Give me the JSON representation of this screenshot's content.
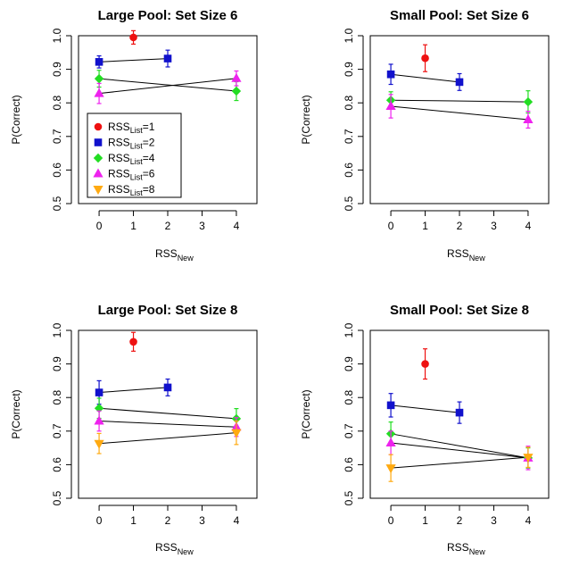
{
  "chart_data": [
    {
      "type": "scatter",
      "title": "Large Pool: Set Size 6",
      "xlabel": "RSS",
      "xlabel_sub": "New",
      "ylabel": "P(Correct)",
      "xlim": [
        -0.6,
        4.6
      ],
      "ylim": [
        0.5,
        1.0
      ],
      "xticks": [
        "0",
        "1",
        "2",
        "3",
        "4"
      ],
      "yticks": [
        "0.5",
        "0.6",
        "0.7",
        "0.8",
        "0.9",
        "1.0"
      ],
      "series": [
        {
          "name": "RSS_List=1",
          "shape": "circle",
          "points": [
            {
              "x": 1,
              "y": 0.995,
              "err": 0.02
            }
          ]
        },
        {
          "name": "RSS_List=2",
          "shape": "square",
          "points": [
            {
              "x": 0,
              "y": 0.922,
              "err": 0.018
            },
            {
              "x": 2,
              "y": 0.932,
              "err": 0.025
            }
          ]
        },
        {
          "name": "RSS_List=4",
          "shape": "diamond",
          "points": [
            {
              "x": 0,
              "y": 0.872,
              "err": 0.025
            },
            {
              "x": 4,
              "y": 0.835,
              "err": 0.028
            }
          ]
        },
        {
          "name": "RSS_List=6",
          "shape": "triangle-up",
          "points": [
            {
              "x": 0,
              "y": 0.828,
              "err": 0.03
            },
            {
              "x": 4,
              "y": 0.873,
              "err": 0.022
            }
          ]
        }
      ],
      "legend": {
        "position": "center-left",
        "items": [
          {
            "label": "RSS",
            "sub": "List",
            "suffix": "=1"
          },
          {
            "label": "RSS",
            "sub": "List",
            "suffix": "=2"
          },
          {
            "label": "RSS",
            "sub": "List",
            "suffix": "=4"
          },
          {
            "label": "RSS",
            "sub": "List",
            "suffix": "=6"
          },
          {
            "label": "RSS",
            "sub": "List",
            "suffix": "=8"
          }
        ]
      }
    },
    {
      "type": "scatter",
      "title": "Small Pool: Set Size 6",
      "xlabel": "RSS",
      "xlabel_sub": "New",
      "ylabel": "P(Correct)",
      "xlim": [
        -0.6,
        4.6
      ],
      "ylim": [
        0.5,
        1.0
      ],
      "xticks": [
        "0",
        "1",
        "2",
        "3",
        "4"
      ],
      "yticks": [
        "0.5",
        "0.6",
        "0.7",
        "0.8",
        "0.9",
        "1.0"
      ],
      "series": [
        {
          "name": "RSS_List=1",
          "shape": "circle",
          "points": [
            {
              "x": 1,
              "y": 0.933,
              "err": 0.04
            }
          ]
        },
        {
          "name": "RSS_List=2",
          "shape": "square",
          "points": [
            {
              "x": 0,
              "y": 0.885,
              "err": 0.03
            },
            {
              "x": 2,
              "y": 0.862,
              "err": 0.025
            }
          ]
        },
        {
          "name": "RSS_List=4",
          "shape": "diamond",
          "points": [
            {
              "x": 0,
              "y": 0.808,
              "err": 0.025
            },
            {
              "x": 4,
              "y": 0.803,
              "err": 0.033
            }
          ]
        },
        {
          "name": "RSS_List=6",
          "shape": "triangle-up",
          "points": [
            {
              "x": 0,
              "y": 0.79,
              "err": 0.035
            },
            {
              "x": 4,
              "y": 0.75,
              "err": 0.025
            }
          ]
        }
      ]
    },
    {
      "type": "scatter",
      "title": "Large Pool: Set Size 8",
      "xlabel": "RSS",
      "xlabel_sub": "New",
      "ylabel": "P(Correct)",
      "xlim": [
        -0.6,
        4.6
      ],
      "ylim": [
        0.5,
        1.0
      ],
      "xticks": [
        "0",
        "1",
        "2",
        "3",
        "4"
      ],
      "yticks": [
        "0.5",
        "0.6",
        "0.7",
        "0.8",
        "0.9",
        "1.0"
      ],
      "series": [
        {
          "name": "RSS_List=1",
          "shape": "circle",
          "points": [
            {
              "x": 1,
              "y": 0.966,
              "err": 0.028
            }
          ]
        },
        {
          "name": "RSS_List=2",
          "shape": "square",
          "points": [
            {
              "x": 0,
              "y": 0.815,
              "err": 0.035
            },
            {
              "x": 2,
              "y": 0.83,
              "err": 0.025
            }
          ]
        },
        {
          "name": "RSS_List=4",
          "shape": "diamond",
          "points": [
            {
              "x": 0,
              "y": 0.768,
              "err": 0.03
            },
            {
              "x": 4,
              "y": 0.737,
              "err": 0.03
            }
          ]
        },
        {
          "name": "RSS_List=6",
          "shape": "triangle-up",
          "points": [
            {
              "x": 0,
              "y": 0.73,
              "err": 0.03
            },
            {
              "x": 4,
              "y": 0.712,
              "err": 0.028
            }
          ]
        },
        {
          "name": "RSS_List=8",
          "shape": "triangle-down",
          "points": [
            {
              "x": 0,
              "y": 0.663,
              "err": 0.03
            },
            {
              "x": 4,
              "y": 0.695,
              "err": 0.035
            }
          ]
        }
      ]
    },
    {
      "type": "scatter",
      "title": "Small Pool: Set Size 8",
      "xlabel": "RSS",
      "xlabel_sub": "New",
      "ylabel": "P(Correct)",
      "xlim": [
        -0.6,
        4.6
      ],
      "ylim": [
        0.5,
        1.0
      ],
      "xticks": [
        "0",
        "1",
        "2",
        "3",
        "4"
      ],
      "yticks": [
        "0.5",
        "0.6",
        "0.7",
        "0.8",
        "0.9",
        "1.0"
      ],
      "series": [
        {
          "name": "RSS_List=1",
          "shape": "circle",
          "points": [
            {
              "x": 1,
              "y": 0.9,
              "err": 0.045
            }
          ]
        },
        {
          "name": "RSS_List=2",
          "shape": "square",
          "points": [
            {
              "x": 0,
              "y": 0.777,
              "err": 0.035
            },
            {
              "x": 2,
              "y": 0.755,
              "err": 0.032
            }
          ]
        },
        {
          "name": "RSS_List=4",
          "shape": "diamond",
          "points": [
            {
              "x": 0,
              "y": 0.692,
              "err": 0.035
            },
            {
              "x": 4,
              "y": 0.62,
              "err": 0.03
            }
          ]
        },
        {
          "name": "RSS_List=6",
          "shape": "triangle-up",
          "points": [
            {
              "x": 0,
              "y": 0.665,
              "err": 0.035
            },
            {
              "x": 4,
              "y": 0.62,
              "err": 0.035
            }
          ]
        },
        {
          "name": "RSS_List=8",
          "shape": "triangle-down",
          "points": [
            {
              "x": 0,
              "y": 0.59,
              "err": 0.04
            },
            {
              "x": 4,
              "y": 0.622,
              "err": 0.03
            }
          ]
        }
      ]
    }
  ],
  "series_colors": {
    "RSS_List=1": "#ee1111",
    "RSS_List=2": "#1111cc",
    "RSS_List=4": "#22dd22",
    "RSS_List=6": "#ee22ee",
    "RSS_List=8": "#ffaa11"
  }
}
